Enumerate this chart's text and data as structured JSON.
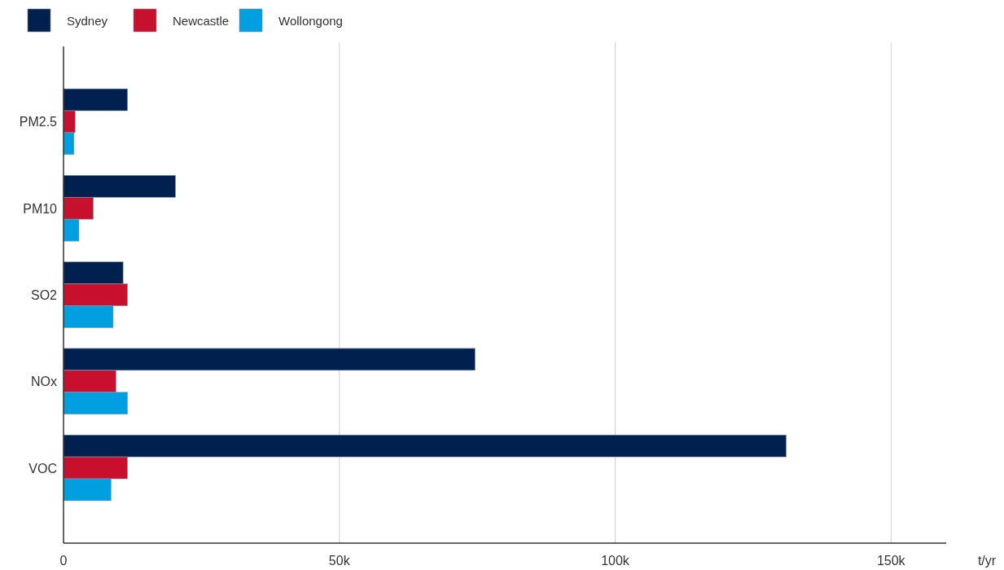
{
  "chart_data": {
    "type": "bar",
    "orientation": "horizontal",
    "categories": [
      "PM2.5",
      "PM10",
      "SO2",
      "NOx",
      "VOC"
    ],
    "series": [
      {
        "name": "Sydney",
        "color": "#002050",
        "values": [
          11600,
          20300,
          10800,
          74600,
          131000
        ]
      },
      {
        "name": "Newcastle",
        "color": "#c8102e",
        "values": [
          2100,
          5400,
          11600,
          9500,
          11600
        ]
      },
      {
        "name": "Wollongong",
        "color": "#00a0e0",
        "values": [
          1900,
          2800,
          9000,
          11600,
          8600
        ]
      }
    ],
    "xlabel": "t/yr",
    "xlim": [
      0,
      160000
    ],
    "xticks": [
      {
        "value": 0,
        "label": "0"
      },
      {
        "value": 50000,
        "label": "50k"
      },
      {
        "value": 100000,
        "label": "100k"
      },
      {
        "value": 150000,
        "label": "150k"
      }
    ],
    "grid": "x",
    "legend": "top left"
  }
}
